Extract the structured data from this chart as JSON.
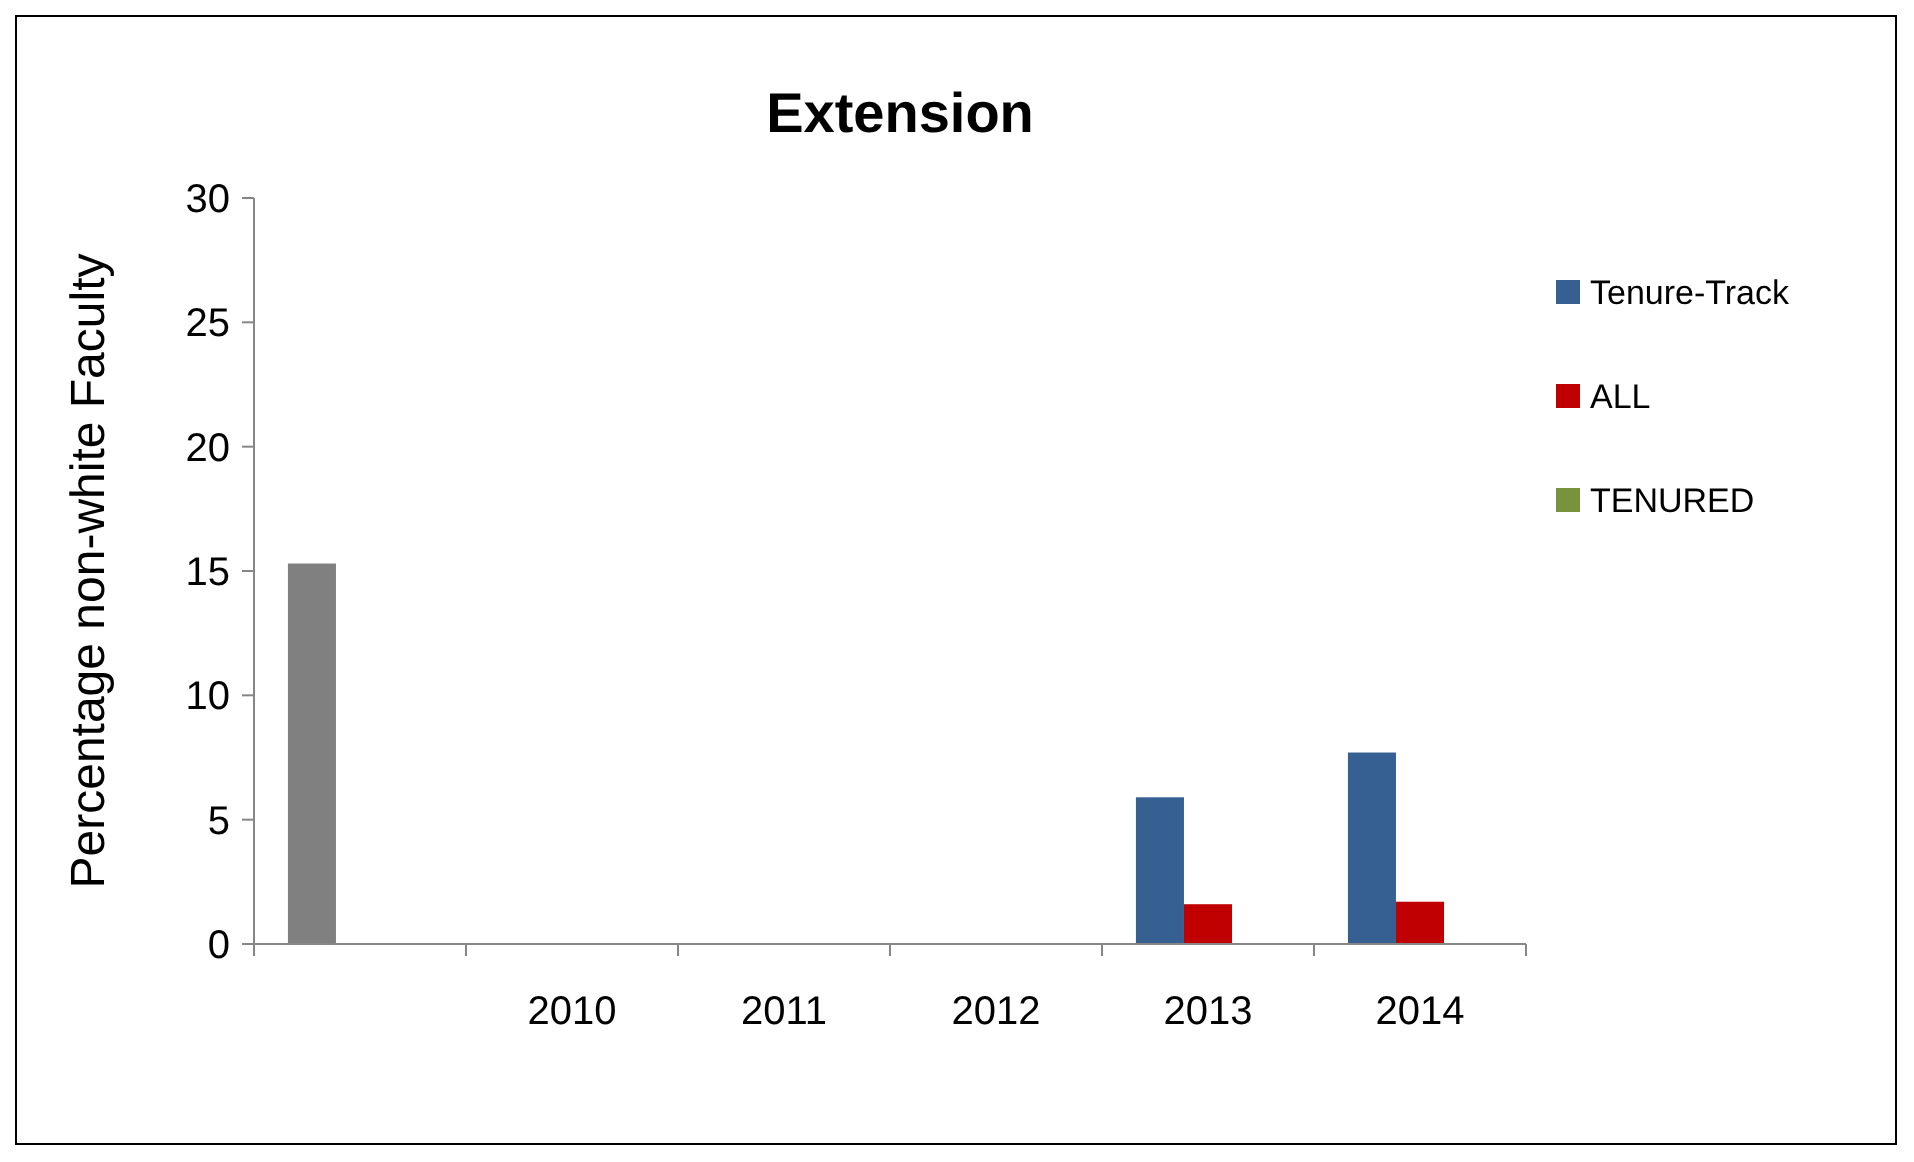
{
  "chart_data": {
    "type": "bar",
    "title": "Extension",
    "ylabel": "Percentage non-white Faculty",
    "categories": [
      null,
      "2010",
      "2011",
      "2012",
      "2013",
      "2014"
    ],
    "series": [
      {
        "name": "Tenure-Track",
        "color": "#376092",
        "colors": [
          "#808080",
          null,
          null,
          null,
          "#376092",
          "#376092"
        ],
        "values": [
          15.3,
          null,
          null,
          null,
          5.9,
          7.7
        ]
      },
      {
        "name": "ALL",
        "color": "#c00000",
        "values": [
          null,
          null,
          null,
          null,
          1.6,
          1.7
        ]
      },
      {
        "name": "TENURED",
        "color": "#77933c",
        "values": [
          null,
          null,
          null,
          null,
          null,
          null
        ]
      }
    ],
    "ylim": [
      0,
      30
    ],
    "yticks": [
      0,
      5,
      10,
      15,
      20,
      25,
      30
    ],
    "grid": false,
    "legend": "right"
  }
}
